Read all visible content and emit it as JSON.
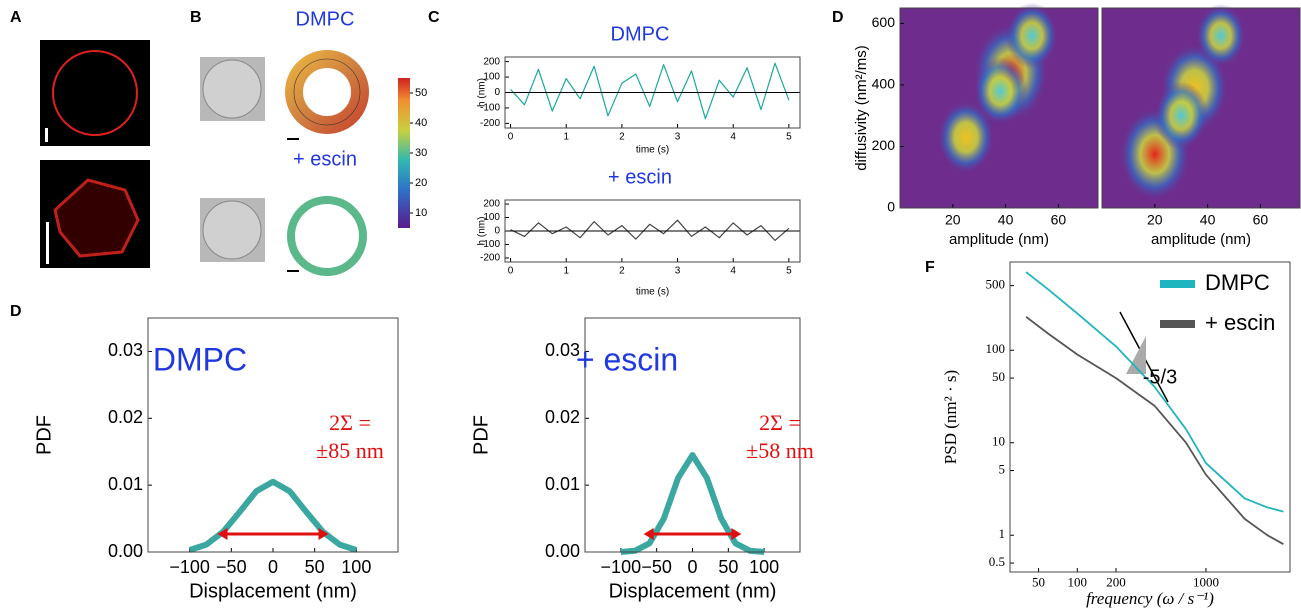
{
  "figure": {
    "panel_labels": [
      "A",
      "B",
      "C",
      "D",
      "D",
      "F"
    ],
    "b_top_label": "DMPC",
    "b_bottom_label": "+ escin"
  },
  "chart_data": [
    {
      "type": "line",
      "title": "DMPC",
      "xlabel": "time (s)",
      "ylabel": "h (nm)",
      "x": [
        0,
        0.25,
        0.5,
        0.75,
        1,
        1.25,
        1.5,
        1.75,
        2,
        2.25,
        2.5,
        2.75,
        3,
        3.25,
        3.5,
        3.75,
        4,
        4.25,
        4.5,
        4.75,
        5
      ],
      "series": [
        {
          "color": "#1aa89c",
          "values": [
            20,
            -80,
            150,
            -120,
            90,
            -40,
            170,
            -150,
            60,
            120,
            -90,
            180,
            -60,
            140,
            -170,
            80,
            -30,
            160,
            -110,
            190,
            -50
          ]
        }
      ],
      "xlim": [
        -0.1,
        5.2
      ],
      "xticks": [
        0,
        1,
        2,
        3,
        4,
        5
      ],
      "ylim": [
        -230,
        230
      ],
      "yticks": [
        -200,
        -100,
        0,
        100,
        200
      ]
    },
    {
      "type": "line",
      "title": "+ escin",
      "xlabel": "time (s)",
      "ylabel": "h (nm)",
      "x": [
        0,
        0.25,
        0.5,
        0.75,
        1,
        1.25,
        1.5,
        1.75,
        2,
        2.25,
        2.5,
        2.75,
        3,
        3.25,
        3.5,
        3.75,
        4,
        4.25,
        4.5,
        4.75,
        5
      ],
      "series": [
        {
          "color": "#444444",
          "values": [
            10,
            -40,
            60,
            -20,
            30,
            -50,
            70,
            -30,
            40,
            -60,
            50,
            -20,
            80,
            -40,
            30,
            -50,
            60,
            -30,
            40,
            -70,
            20
          ]
        }
      ],
      "xlim": [
        -0.1,
        5.2
      ],
      "xticks": [
        0,
        1,
        2,
        3,
        4,
        5
      ],
      "ylim": [
        -230,
        230
      ],
      "yticks": [
        -200,
        -100,
        0,
        100,
        200
      ]
    },
    {
      "type": "density",
      "xlabel": "amplitude (nm)",
      "ylabel": "diffusivity (nm²/ms)",
      "background": "#6e2c8c",
      "series": [
        {
          "x": [
            25,
            42,
            38,
            50
          ],
          "y": [
            230,
            440,
            380,
            560
          ],
          "values": [
            0.5,
            1.0,
            0.4,
            0.35
          ]
        }
      ],
      "xlim": [
        0,
        75
      ],
      "xticks": [
        20,
        40,
        60
      ],
      "ylim": [
        0,
        650
      ],
      "yticks": [
        0,
        200,
        400,
        600
      ]
    },
    {
      "type": "density",
      "xlabel": "amplitude (nm)",
      "background": "#6e2c8c",
      "series": [
        {
          "x": [
            20,
            35,
            30,
            45
          ],
          "y": [
            175,
            390,
            300,
            560
          ],
          "values": [
            0.9,
            0.8,
            0.4,
            0.3
          ]
        }
      ],
      "xlim": [
        0,
        75
      ],
      "xticks": [
        20,
        40,
        60
      ],
      "ylim": [
        0,
        650
      ]
    },
    {
      "type": "line",
      "xlabel": "Displacement (nm)",
      "ylabel": "PDF",
      "annotations": [
        "DMPC",
        "2Σ =",
        "±85 nm"
      ],
      "x": [
        -100,
        -80,
        -60,
        -40,
        -20,
        0,
        20,
        40,
        60,
        80,
        100
      ],
      "series": [
        {
          "color": "#3aa8a0",
          "values": [
            0.0003,
            0.0011,
            0.003,
            0.006,
            0.0091,
            0.0105,
            0.0091,
            0.006,
            0.003,
            0.0011,
            0.0003
          ]
        }
      ],
      "xlim": [
        -150,
        150
      ],
      "xticks": [
        {
          "value": -100,
          "label": "−100"
        },
        {
          "value": -50,
          "label": "−50"
        },
        0,
        50,
        100
      ],
      "ylim": [
        0,
        0.035
      ],
      "yticks": [
        {
          "value": 0,
          "label": "0.00"
        },
        {
          "value": 0.01,
          "label": "0.01"
        },
        {
          "value": 0.02,
          "label": "0.02"
        },
        {
          "value": 0.03,
          "label": "0.03"
        }
      ]
    },
    {
      "type": "line",
      "xlabel": "Displacement (nm)",
      "ylabel": "PDF",
      "annotations": [
        "+ escin",
        "2Σ =",
        "±58 nm"
      ],
      "x": [
        -100,
        -80,
        -60,
        -40,
        -20,
        0,
        20,
        40,
        60,
        80,
        100
      ],
      "series": [
        {
          "color": "#3aa8a0",
          "values": [
            0,
            0.0002,
            0.0013,
            0.005,
            0.0111,
            0.0145,
            0.0111,
            0.005,
            0.0013,
            0.0002,
            0
          ]
        }
      ],
      "xlim": [
        -150,
        150
      ],
      "xticks": [
        {
          "value": -100,
          "label": "−100"
        },
        {
          "value": -50,
          "label": "−50"
        },
        0,
        50,
        100
      ],
      "ylim": [
        0,
        0.035
      ],
      "yticks": [
        {
          "value": 0,
          "label": "0.00"
        },
        {
          "value": 0.01,
          "label": "0.01"
        },
        {
          "value": 0.02,
          "label": "0.02"
        },
        {
          "value": 0.03,
          "label": "0.03"
        }
      ]
    },
    {
      "type": "line",
      "xlabel": "frequency (ω / s⁻¹)",
      "ylabel": "PSD (nm² · s)",
      "log": true,
      "legend": "top-right",
      "annotations": [
        "-5/3"
      ],
      "x": [
        40,
        60,
        100,
        200,
        400,
        700,
        1000,
        2000,
        3000,
        4000
      ],
      "series": [
        {
          "name": "DMPC",
          "color": "#1fb5bf",
          "values": [
            700,
            450,
            250,
            110,
            40,
            14,
            6,
            2.5,
            2.0,
            1.8
          ]
        },
        {
          "name": "+ escin",
          "color": "#555555",
          "values": [
            230,
            150,
            90,
            50,
            25,
            10,
            4.5,
            1.5,
            1.0,
            0.8
          ]
        }
      ],
      "xlim": [
        30,
        4500
      ],
      "xticks": [
        50,
        100,
        200,
        1000
      ],
      "ylim": [
        0.4,
        900
      ],
      "yticks": [
        0.5,
        1,
        5,
        10,
        50,
        100,
        500
      ]
    },
    {
      "type": "colorbar",
      "ylim": [
        5,
        55
      ],
      "yticks": [
        10,
        20,
        30,
        40,
        50
      ]
    }
  ]
}
